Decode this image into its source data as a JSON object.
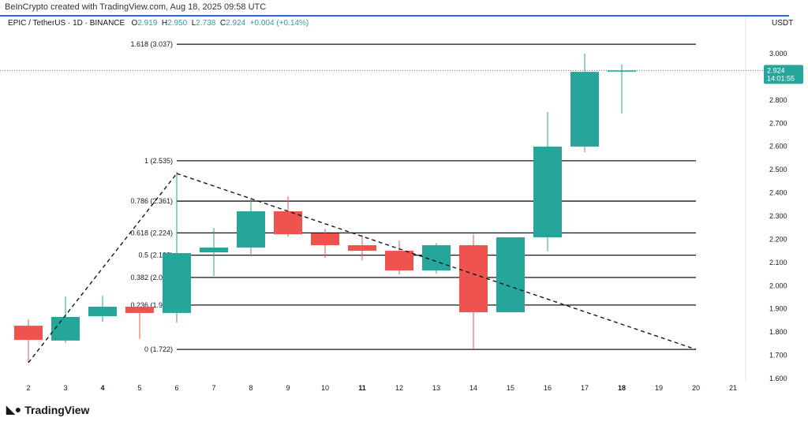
{
  "credit": "BeInCrypto created with TradingView.com, Aug 18, 2025 09:58 UTC",
  "legend": {
    "symbol": "EPIC / TetherUS · 1D · BINANCE",
    "o": "2.919",
    "h": "2.950",
    "l": "2.738",
    "c": "2.924",
    "change": "+0.004 (+0.14%)"
  },
  "price_unit": "USDT",
  "last_price": {
    "value": "2.924",
    "countdown": "14:01:55"
  },
  "logo": "TradingView",
  "colors": {
    "up": "#26a69a",
    "down": "#ef5350",
    "accent": "#2962ff"
  },
  "chart_data": {
    "type": "candlestick",
    "x": [
      2,
      3,
      4,
      5,
      6,
      7,
      8,
      9,
      10,
      11,
      12,
      13,
      14,
      15,
      16,
      17,
      18
    ],
    "x_ticks": [
      "2",
      "3",
      "4",
      "5",
      "6",
      "7",
      "8",
      "9",
      "10",
      "11",
      "12",
      "13",
      "14",
      "15",
      "16",
      "17",
      "18",
      "19",
      "20",
      "21"
    ],
    "bold_ticks": [
      "4",
      "11",
      "18"
    ],
    "ylim": [
      1.58,
      3.07
    ],
    "y_ticks": [
      "1.600",
      "1.700",
      "1.800",
      "1.900",
      "2.000",
      "2.100",
      "2.200",
      "2.300",
      "2.400",
      "2.500",
      "2.600",
      "2.700",
      "2.800",
      "3.000"
    ],
    "ohlc": [
      [
        1.824,
        1.851,
        1.665,
        1.763
      ],
      [
        1.76,
        1.95,
        1.75,
        1.862
      ],
      [
        1.865,
        1.953,
        1.841,
        1.906
      ],
      [
        1.906,
        1.906,
        1.767,
        1.879
      ],
      [
        1.879,
        2.487,
        1.838,
        2.137
      ],
      [
        2.14,
        2.246,
        2.038,
        2.161
      ],
      [
        2.161,
        2.371,
        2.123,
        2.317
      ],
      [
        2.317,
        2.382,
        2.208,
        2.218
      ],
      [
        2.222,
        2.242,
        2.117,
        2.171
      ],
      [
        2.171,
        2.215,
        2.106,
        2.147
      ],
      [
        2.147,
        2.191,
        2.045,
        2.062
      ],
      [
        2.062,
        2.181,
        2.049,
        2.171
      ],
      [
        2.171,
        2.218,
        1.726,
        1.882
      ],
      [
        1.882,
        2.205,
        1.882,
        2.205
      ],
      [
        2.205,
        2.745,
        2.144,
        2.596
      ],
      [
        2.596,
        2.997,
        2.572,
        2.918
      ],
      [
        2.919,
        2.95,
        2.738,
        2.924
      ]
    ],
    "fib_levels": [
      {
        "label": "0 (1.722)",
        "value": 1.722
      },
      {
        "label": "0.236 (1.913)",
        "value": 1.913
      },
      {
        "label": "0.382 (2.032)",
        "value": 2.032
      },
      {
        "label": "0.5 (2.128)",
        "value": 2.128
      },
      {
        "label": "0.618 (2.224)",
        "value": 2.224
      },
      {
        "label": "0.786 (2.361)",
        "value": 2.361
      },
      {
        "label": "1 (2.535)",
        "value": 2.535
      },
      {
        "label": "1.618 (3.037)",
        "value": 3.037
      }
    ],
    "trendlines": [
      [
        [
          2,
          1.665
        ],
        [
          6,
          2.48
        ]
      ],
      [
        [
          6,
          2.48
        ],
        [
          20,
          1.722
        ]
      ]
    ]
  }
}
